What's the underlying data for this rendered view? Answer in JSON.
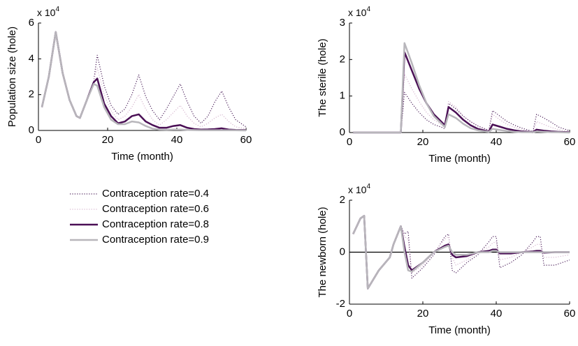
{
  "chart_data": [
    {
      "type": "line",
      "ylabel": "Population size (hole)",
      "xlabel": "Time (month)",
      "scale_base": "x 10",
      "scale_exponent": "4",
      "x": [
        1,
        3,
        5,
        7,
        9,
        11,
        12,
        14,
        16,
        17,
        19,
        21,
        23,
        25,
        27,
        29,
        31,
        33,
        35,
        37,
        39,
        41,
        43,
        45,
        47,
        49,
        51,
        53,
        55,
        57,
        60
      ],
      "xlim": [
        0,
        60
      ],
      "xticks": [
        0,
        20,
        40,
        60
      ],
      "ylim": [
        0,
        6
      ],
      "yticks": [
        0,
        2,
        4,
        6
      ],
      "series": [
        {
          "name": "Contraception rate=0.4",
          "color": "#4b1f5a",
          "style": "dotted",
          "width": 1.2,
          "values": [
            1.3,
            3.0,
            5.5,
            3.2,
            1.7,
            0.8,
            0.7,
            1.7,
            2.8,
            4.2,
            2.5,
            1.4,
            0.9,
            1.2,
            2.0,
            3.1,
            1.9,
            1.1,
            0.6,
            1.2,
            1.9,
            2.6,
            1.6,
            0.8,
            0.4,
            0.8,
            1.6,
            2.2,
            1.3,
            0.6,
            0.2
          ]
        },
        {
          "name": "Contraception rate=0.6",
          "color": "#d6b6cf",
          "style": "dotted",
          "width": 1.2,
          "values": [
            1.3,
            3.0,
            5.5,
            3.2,
            1.7,
            0.8,
            0.7,
            1.7,
            2.8,
            3.5,
            2.0,
            1.1,
            0.6,
            0.8,
            1.3,
            2.0,
            1.2,
            0.6,
            0.3,
            0.6,
            1.0,
            1.4,
            0.8,
            0.4,
            0.2,
            0.4,
            0.7,
            0.9,
            0.5,
            0.2,
            0.1
          ]
        },
        {
          "name": "Contraception rate=0.8",
          "color": "#4a0f55",
          "style": "solid",
          "width": 2.5,
          "values": [
            1.3,
            3.0,
            5.5,
            3.2,
            1.7,
            0.8,
            0.7,
            1.7,
            2.7,
            2.9,
            1.5,
            0.8,
            0.4,
            0.5,
            0.8,
            0.9,
            0.5,
            0.3,
            0.15,
            0.15,
            0.25,
            0.3,
            0.15,
            0.08,
            0.05,
            0.06,
            0.08,
            0.12,
            0.05,
            0.03,
            0.02
          ]
        },
        {
          "name": "Contraception rate=0.9",
          "color": "#b8b6bb",
          "style": "solid",
          "width": 2.5,
          "values": [
            1.3,
            3.0,
            5.5,
            3.2,
            1.7,
            0.8,
            0.7,
            1.7,
            2.6,
            2.5,
            1.3,
            0.6,
            0.35,
            0.35,
            0.5,
            0.45,
            0.25,
            0.1,
            0.05,
            0.04,
            0.05,
            0.05,
            0.03,
            0.02,
            0.01,
            0.01,
            0.01,
            0.01,
            0.01,
            0.01,
            0
          ]
        }
      ]
    },
    {
      "type": "line",
      "ylabel": "The sterile (hole)",
      "xlabel": "Time (month)",
      "scale_base": "x 10",
      "scale_exponent": "4",
      "x": [
        1,
        14,
        15,
        17,
        19,
        21,
        23,
        25,
        26,
        27,
        29,
        31,
        33,
        35,
        37,
        38,
        39,
        41,
        43,
        45,
        47,
        49,
        50,
        51,
        53,
        55,
        57,
        60
      ],
      "xlim": [
        0,
        60
      ],
      "xticks": [
        0,
        20,
        40,
        60
      ],
      "ylim": [
        0,
        3
      ],
      "yticks": [
        0,
        1,
        2,
        3
      ],
      "series": [
        {
          "color": "#4b1f5a",
          "style": "dotted",
          "width": 1.2,
          "values": [
            0,
            0,
            1.1,
            0.8,
            0.55,
            0.35,
            0.22,
            0.15,
            0.1,
            0.8,
            0.65,
            0.45,
            0.3,
            0.18,
            0.1,
            0.06,
            0.6,
            0.45,
            0.3,
            0.2,
            0.12,
            0.06,
            0.03,
            0.5,
            0.4,
            0.28,
            0.15,
            0.05
          ]
        },
        {
          "color": "#d6b6cf",
          "style": "dotted",
          "width": 1.2,
          "values": [
            0,
            0,
            1.6,
            1.2,
            0.85,
            0.55,
            0.35,
            0.22,
            0.15,
            0.85,
            0.7,
            0.45,
            0.3,
            0.18,
            0.1,
            0.06,
            0.5,
            0.35,
            0.22,
            0.14,
            0.08,
            0.04,
            0.02,
            0.3,
            0.22,
            0.14,
            0.08,
            0.03
          ]
        },
        {
          "color": "#4a0f55",
          "style": "solid",
          "width": 2.5,
          "values": [
            0,
            0,
            2.2,
            1.7,
            1.2,
            0.8,
            0.5,
            0.3,
            0.2,
            0.7,
            0.55,
            0.35,
            0.2,
            0.1,
            0.05,
            0.03,
            0.22,
            0.16,
            0.1,
            0.06,
            0.03,
            0.02,
            0.01,
            0.08,
            0.05,
            0.03,
            0.02,
            0.01
          ]
        },
        {
          "color": "#b8b6bb",
          "style": "solid",
          "width": 2.5,
          "values": [
            0,
            0,
            2.45,
            1.9,
            1.3,
            0.8,
            0.45,
            0.25,
            0.15,
            0.5,
            0.4,
            0.24,
            0.12,
            0.06,
            0.03,
            0.02,
            0.1,
            0.07,
            0.04,
            0.02,
            0.01,
            0.01,
            0.01,
            0.03,
            0.02,
            0.01,
            0.01,
            0
          ]
        }
      ]
    },
    {
      "type": "line",
      "ylabel": "The newborn (hole)",
      "xlabel": "Time (month)",
      "scale_base": "x 10",
      "scale_exponent": "4",
      "zero_line": true,
      "x": [
        1,
        3,
        4,
        5,
        8,
        11,
        12,
        14,
        15,
        16,
        17,
        20,
        23,
        26,
        27,
        28,
        29,
        32,
        35,
        38,
        39,
        40,
        41,
        44,
        47,
        50,
        51,
        52,
        53,
        56,
        60
      ],
      "xlim": [
        0,
        60
      ],
      "xticks": [
        0,
        20,
        40,
        60
      ],
      "ylim": [
        -2,
        2
      ],
      "yticks": [
        -2,
        0,
        2
      ],
      "series": [
        {
          "color": "#4b1f5a",
          "style": "dotted",
          "width": 1.2,
          "values": [
            0.7,
            1.3,
            1.4,
            -1.4,
            -0.7,
            -0.2,
            0.3,
            1.0,
            0.7,
            0.8,
            -1.0,
            -0.6,
            -0.1,
            0.6,
            0.7,
            -0.7,
            -0.8,
            -0.4,
            -0.1,
            0.4,
            0.6,
            0.6,
            -0.6,
            -0.4,
            -0.1,
            0.4,
            0.6,
            0.6,
            -0.5,
            -0.5,
            -0.3
          ]
        },
        {
          "color": "#d6b6cf",
          "style": "dotted",
          "width": 1.2,
          "values": [
            0.7,
            1.3,
            1.4,
            -1.4,
            -0.7,
            -0.2,
            0.3,
            1.0,
            0.6,
            0.5,
            -0.8,
            -0.5,
            0,
            0.5,
            0.6,
            -0.2,
            -0.5,
            -0.3,
            0,
            0.2,
            0.35,
            0.4,
            -0.3,
            -0.2,
            0,
            0.2,
            0.3,
            0.3,
            -0.2,
            -0.2,
            -0.1
          ]
        },
        {
          "color": "#4a0f55",
          "style": "solid",
          "width": 2.5,
          "values": [
            0.7,
            1.3,
            1.4,
            -1.4,
            -0.7,
            -0.2,
            0.3,
            1.0,
            0.2,
            -0.5,
            -0.7,
            -0.4,
            0,
            0.25,
            0.3,
            -0.1,
            -0.2,
            -0.15,
            0,
            0.05,
            0.1,
            0.1,
            -0.05,
            -0.05,
            0,
            0.03,
            0.05,
            0.05,
            -0.02,
            0,
            0
          ]
        },
        {
          "color": "#b8b6bb",
          "style": "solid",
          "width": 2.5,
          "values": [
            0.7,
            1.3,
            1.4,
            -1.4,
            -0.7,
            -0.2,
            0.3,
            1.0,
            0,
            -0.7,
            -0.75,
            -0.4,
            0,
            0.2,
            0.25,
            0,
            -0.1,
            -0.1,
            0,
            0,
            0.05,
            0.05,
            0,
            0,
            0,
            0,
            0,
            0,
            0,
            0,
            0
          ]
        }
      ]
    }
  ]
}
